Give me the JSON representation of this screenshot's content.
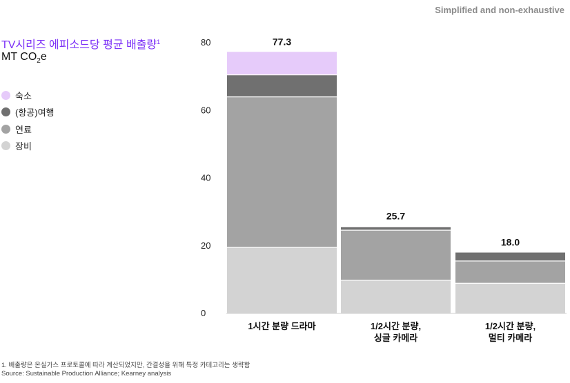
{
  "header": {
    "tagline": "Simplified and non-exhaustive"
  },
  "chart_title": "TV시리즈 에피소드당 평균 배출량",
  "chart_title_note": "1",
  "unit_prefix": "MT CO",
  "unit_sub": "2",
  "unit_suffix": "e",
  "footnotes": {
    "note": "1. 배출량은 온실가스 프로토콜에 따라 계산되었지만, 간결성을 위해 특정 카테고리는 생략함",
    "source": "Source: Sustainable Production Alliance; Kearney analysis"
  },
  "colors": {
    "accommodation": "#e6cbfa",
    "air_travel": "#707070",
    "fuel": "#a3a3a3",
    "equipment": "#d3d3d3",
    "title": "#7b2ff7"
  },
  "chart_data": {
    "type": "bar",
    "stacked": true,
    "categories": [
      "1시간 분량 드라마",
      "1/2시간 분량,\n싱글 카메라",
      "1/2시간 분량,\n멀티 카메라"
    ],
    "series": [
      {
        "name": "장비",
        "values": [
          19.5,
          9.8,
          8.9
        ]
      },
      {
        "name": "연료",
        "values": [
          44.5,
          14.8,
          6.6
        ]
      },
      {
        "name": "(항공)여행",
        "values": [
          6.5,
          1.0,
          2.5
        ]
      },
      {
        "name": "숙소",
        "values": [
          6.8,
          0.1,
          0.0
        ]
      }
    ],
    "legend_order": [
      "숙소",
      "(항공)여행",
      "연료",
      "장비"
    ],
    "totals": [
      77.3,
      25.7,
      18.0
    ],
    "total_labels": [
      "77.3",
      "25.7",
      "18.0"
    ],
    "yticks": [
      0,
      20,
      40,
      60,
      80
    ],
    "ylim": [
      0,
      80
    ],
    "grid": false,
    "legend_position": "left"
  }
}
